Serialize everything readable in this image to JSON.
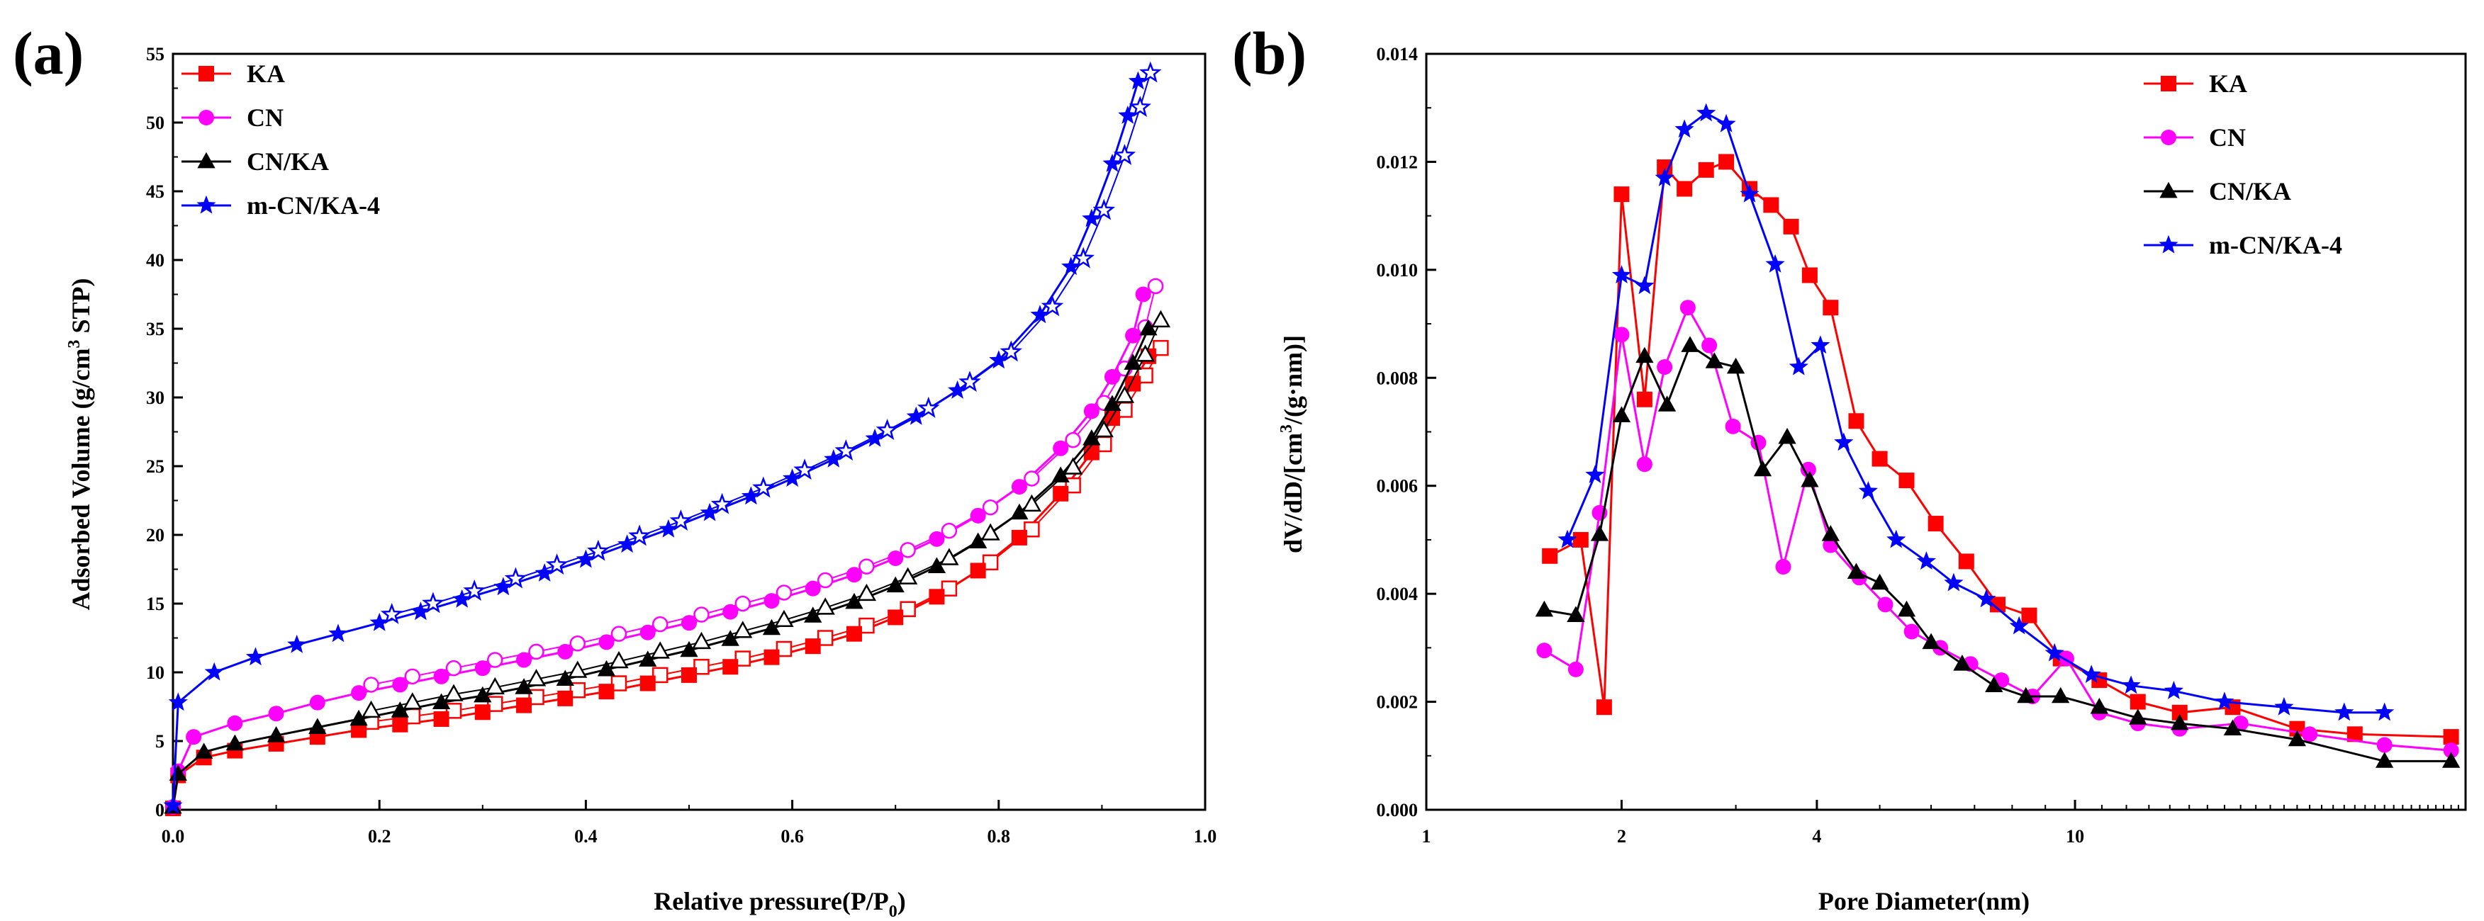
{
  "chart_data": [
    {
      "type": "line",
      "panel_label": "(a)",
      "xlabel": "Relative pressure(P/P",
      "xlabel_sub": "0",
      "xlabel_close": ")",
      "ylabel": "Adsorbed Volume (g/cm",
      "ylabel_sup": "3",
      "ylabel_end": " STP)",
      "xlim": [
        0.0,
        1.0
      ],
      "ylim": [
        0,
        55
      ],
      "xticks": [
        0.0,
        0.2,
        0.4,
        0.6,
        0.8,
        1.0
      ],
      "xtick_labels": [
        "0.0",
        "0.2",
        "0.4",
        "0.6",
        "0.8",
        "1.0"
      ],
      "yticks": [
        0,
        5,
        10,
        15,
        20,
        25,
        30,
        35,
        40,
        45,
        50,
        55
      ],
      "ytick_labels": [
        "0",
        "5",
        "10",
        "15",
        "20",
        "25",
        "30",
        "35",
        "40",
        "45",
        "50",
        "55"
      ],
      "legend_position": "top-left",
      "series": [
        {
          "name": "KA",
          "color": "#ff0000",
          "marker": "square",
          "x": [
            0.0,
            0.005,
            0.03,
            0.06,
            0.1,
            0.14,
            0.18,
            0.22,
            0.26,
            0.3,
            0.34,
            0.38,
            0.42,
            0.46,
            0.5,
            0.54,
            0.58,
            0.62,
            0.66,
            0.7,
            0.74,
            0.78,
            0.82,
            0.86,
            0.89,
            0.91,
            0.93,
            0.945
          ],
          "y": [
            0.1,
            2.5,
            3.8,
            4.3,
            4.8,
            5.3,
            5.8,
            6.2,
            6.6,
            7.1,
            7.6,
            8.1,
            8.6,
            9.2,
            9.8,
            10.4,
            11.1,
            11.9,
            12.8,
            14.0,
            15.5,
            17.4,
            19.8,
            23.0,
            26.0,
            28.5,
            31.0,
            33.0
          ]
        },
        {
          "name": "CN",
          "color": "#ff00ff",
          "marker": "circle",
          "x": [
            0.0,
            0.005,
            0.02,
            0.06,
            0.1,
            0.14,
            0.18,
            0.22,
            0.26,
            0.3,
            0.34,
            0.38,
            0.42,
            0.46,
            0.5,
            0.54,
            0.58,
            0.62,
            0.66,
            0.7,
            0.74,
            0.78,
            0.82,
            0.86,
            0.89,
            0.91,
            0.93,
            0.94
          ],
          "y": [
            0.2,
            2.8,
            5.3,
            6.3,
            7.0,
            7.8,
            8.5,
            9.1,
            9.7,
            10.3,
            10.9,
            11.5,
            12.2,
            12.9,
            13.6,
            14.4,
            15.2,
            16.1,
            17.1,
            18.3,
            19.7,
            21.4,
            23.5,
            26.3,
            29.0,
            31.5,
            34.5,
            37.5
          ]
        },
        {
          "name": "CN/KA",
          "color": "#000000",
          "marker": "triangle",
          "x": [
            0.0,
            0.005,
            0.03,
            0.06,
            0.1,
            0.14,
            0.18,
            0.22,
            0.26,
            0.3,
            0.34,
            0.38,
            0.42,
            0.46,
            0.5,
            0.54,
            0.58,
            0.62,
            0.66,
            0.7,
            0.74,
            0.78,
            0.82,
            0.86,
            0.89,
            0.91,
            0.93,
            0.945
          ],
          "y": [
            0.2,
            2.6,
            4.2,
            4.8,
            5.4,
            6.0,
            6.6,
            7.2,
            7.8,
            8.3,
            8.9,
            9.5,
            10.2,
            10.9,
            11.6,
            12.4,
            13.2,
            14.1,
            15.1,
            16.3,
            17.7,
            19.5,
            21.6,
            24.3,
            27.0,
            29.5,
            32.5,
            35.0
          ]
        },
        {
          "name": "m-CN/KA-4",
          "color": "#0000ff",
          "marker": "star",
          "x": [
            0.0,
            0.005,
            0.04,
            0.08,
            0.12,
            0.16,
            0.2,
            0.24,
            0.28,
            0.32,
            0.36,
            0.4,
            0.44,
            0.48,
            0.52,
            0.56,
            0.6,
            0.64,
            0.68,
            0.72,
            0.76,
            0.8,
            0.84,
            0.87,
            0.89,
            0.91,
            0.925,
            0.935
          ],
          "y": [
            0.3,
            7.8,
            10.0,
            11.1,
            12.0,
            12.8,
            13.6,
            14.4,
            15.3,
            16.2,
            17.2,
            18.2,
            19.3,
            20.4,
            21.6,
            22.8,
            24.1,
            25.5,
            27.0,
            28.6,
            30.5,
            32.7,
            36.0,
            39.5,
            43.0,
            47.0,
            50.5,
            53.0
          ]
        }
      ]
    },
    {
      "type": "line",
      "panel_label": "(b)",
      "xlabel": "Pore Diameter(nm)",
      "ylabel": "dV/dD/[cm",
      "ylabel_sup": "3",
      "ylabel_end": "/(g·nm)]",
      "xscale": "log",
      "xlim": [
        1,
        40
      ],
      "ylim": [
        0.0,
        0.014
      ],
      "xticks": [
        1,
        2,
        4,
        10
      ],
      "xtick_labels": [
        "1",
        "2",
        "4",
        "10"
      ],
      "yticks": [
        0.0,
        0.002,
        0.004,
        0.006,
        0.008,
        0.01,
        0.012,
        0.014
      ],
      "ytick_labels": [
        "0.000",
        "0.002",
        "0.004",
        "0.006",
        "0.008",
        "0.010",
        "0.012",
        "0.014"
      ],
      "legend_position": "top-right",
      "series": [
        {
          "name": "KA",
          "color": "#ff0000",
          "marker": "square",
          "x": [
            1.55,
            1.73,
            1.88,
            2.0,
            2.17,
            2.33,
            2.5,
            2.7,
            2.9,
            3.15,
            3.4,
            3.65,
            3.9,
            4.2,
            4.6,
            5.0,
            5.5,
            6.1,
            6.8,
            7.6,
            8.5,
            9.5,
            10.9,
            12.5,
            14.5,
            17.5,
            22.0,
            27.0,
            38.0
          ],
          "y": [
            0.0047,
            0.005,
            0.0019,
            0.0114,
            0.0076,
            0.0119,
            0.0115,
            0.01185,
            0.012,
            0.0115,
            0.0112,
            0.0108,
            0.0099,
            0.0093,
            0.0072,
            0.0065,
            0.0061,
            0.0053,
            0.0046,
            0.0038,
            0.0036,
            0.0028,
            0.0024,
            0.002,
            0.0018,
            0.0019,
            0.0015,
            0.0014,
            0.00135
          ]
        },
        {
          "name": "CN",
          "color": "#ff00ff",
          "marker": "circle",
          "x": [
            1.52,
            1.7,
            1.85,
            2.0,
            2.17,
            2.33,
            2.53,
            2.73,
            2.97,
            3.25,
            3.55,
            3.88,
            4.2,
            4.65,
            5.1,
            5.6,
            6.2,
            6.9,
            7.7,
            8.6,
            9.7,
            10.9,
            12.5,
            14.5,
            18.0,
            23.0,
            30.0,
            38.0
          ],
          "y": [
            0.00295,
            0.0026,
            0.0055,
            0.0088,
            0.0064,
            0.0082,
            0.0093,
            0.0086,
            0.0071,
            0.0068,
            0.0045,
            0.0063,
            0.0049,
            0.0043,
            0.0038,
            0.0033,
            0.003,
            0.0027,
            0.0024,
            0.0021,
            0.0028,
            0.0018,
            0.0016,
            0.0015,
            0.0016,
            0.0014,
            0.0012,
            0.0011
          ]
        },
        {
          "name": "CN/KA",
          "color": "#000000",
          "marker": "triangle",
          "x": [
            1.52,
            1.7,
            1.85,
            2.0,
            2.17,
            2.35,
            2.55,
            2.78,
            3.0,
            3.3,
            3.6,
            3.9,
            4.2,
            4.6,
            5.0,
            5.5,
            6.0,
            6.7,
            7.5,
            8.4,
            9.5,
            10.9,
            12.5,
            14.5,
            17.5,
            22.0,
            30.0,
            38.0
          ],
          "y": [
            0.0037,
            0.0036,
            0.0051,
            0.0073,
            0.0084,
            0.0075,
            0.0086,
            0.0083,
            0.0082,
            0.0063,
            0.0069,
            0.0061,
            0.0051,
            0.0044,
            0.0042,
            0.0037,
            0.0031,
            0.0027,
            0.0023,
            0.0021,
            0.0021,
            0.0019,
            0.0017,
            0.0016,
            0.0015,
            0.0013,
            0.0009,
            0.0009
          ]
        },
        {
          "name": "m-CN/KA-4",
          "color": "#0000ff",
          "marker": "star",
          "x": [
            1.65,
            1.82,
            2.0,
            2.17,
            2.33,
            2.5,
            2.7,
            2.9,
            3.15,
            3.45,
            3.75,
            4.05,
            4.4,
            4.8,
            5.3,
            5.9,
            6.5,
            7.3,
            8.2,
            9.3,
            10.6,
            12.2,
            14.2,
            17.0,
            21.0,
            26.0,
            30.0
          ],
          "y": [
            0.005,
            0.0062,
            0.0099,
            0.0097,
            0.0117,
            0.0126,
            0.0129,
            0.0127,
            0.0114,
            0.0101,
            0.0082,
            0.0086,
            0.0068,
            0.0059,
            0.005,
            0.0046,
            0.0042,
            0.0039,
            0.0034,
            0.0029,
            0.0025,
            0.0023,
            0.0022,
            0.002,
            0.0019,
            0.0018,
            0.0018
          ]
        }
      ]
    }
  ]
}
